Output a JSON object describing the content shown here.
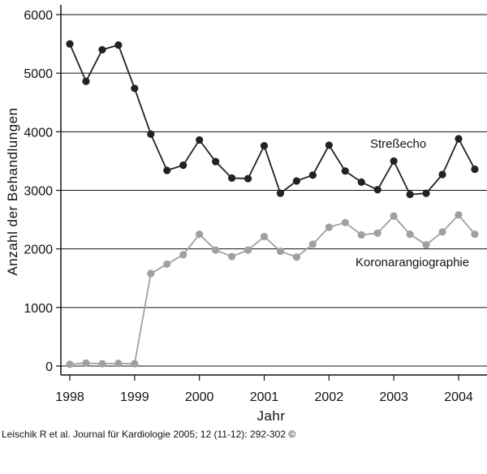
{
  "chart_data": {
    "type": "line",
    "xlabel": "Jahr",
    "ylabel": "Anzahl der Behandlungen",
    "xlim": [
      1998,
      2004.4
    ],
    "ylim": [
      0,
      6000
    ],
    "xticks": [
      1998,
      1999,
      2000,
      2001,
      2002,
      2003,
      2004
    ],
    "yticks": [
      0,
      1000,
      2000,
      3000,
      4000,
      5000,
      6000
    ],
    "grid": "horizontal",
    "x": [
      1998.0,
      1998.25,
      1998.5,
      1998.75,
      1999.0,
      1999.25,
      1999.5,
      1999.75,
      2000.0,
      2000.25,
      2000.5,
      2000.75,
      2001.0,
      2001.25,
      2001.5,
      2001.75,
      2002.0,
      2002.25,
      2002.5,
      2002.75,
      2003.0,
      2003.25,
      2003.5,
      2003.75,
      2004.0,
      2004.25
    ],
    "series": [
      {
        "name": "Streßecho",
        "color": "#222222",
        "values": [
          5500,
          4860,
          5400,
          5480,
          4740,
          3960,
          3340,
          3430,
          3860,
          3490,
          3210,
          3200,
          3760,
          2950,
          3160,
          3260,
          3770,
          3330,
          3140,
          3010,
          3500,
          2930,
          2950,
          3270,
          3880,
          3360
        ]
      },
      {
        "name": "Koronarangiographie",
        "color": "#a0a0a0",
        "values": [
          30,
          50,
          40,
          45,
          40,
          1580,
          1740,
          1900,
          2250,
          1980,
          1870,
          1980,
          2210,
          1960,
          1860,
          2080,
          2370,
          2450,
          2240,
          2270,
          2560,
          2250,
          2070,
          2290,
          2580,
          2250
        ]
      }
    ]
  },
  "citation": "Leischik R et al. Journal für Kardiologie 2005; 12 (11-12): 292-302 ©"
}
